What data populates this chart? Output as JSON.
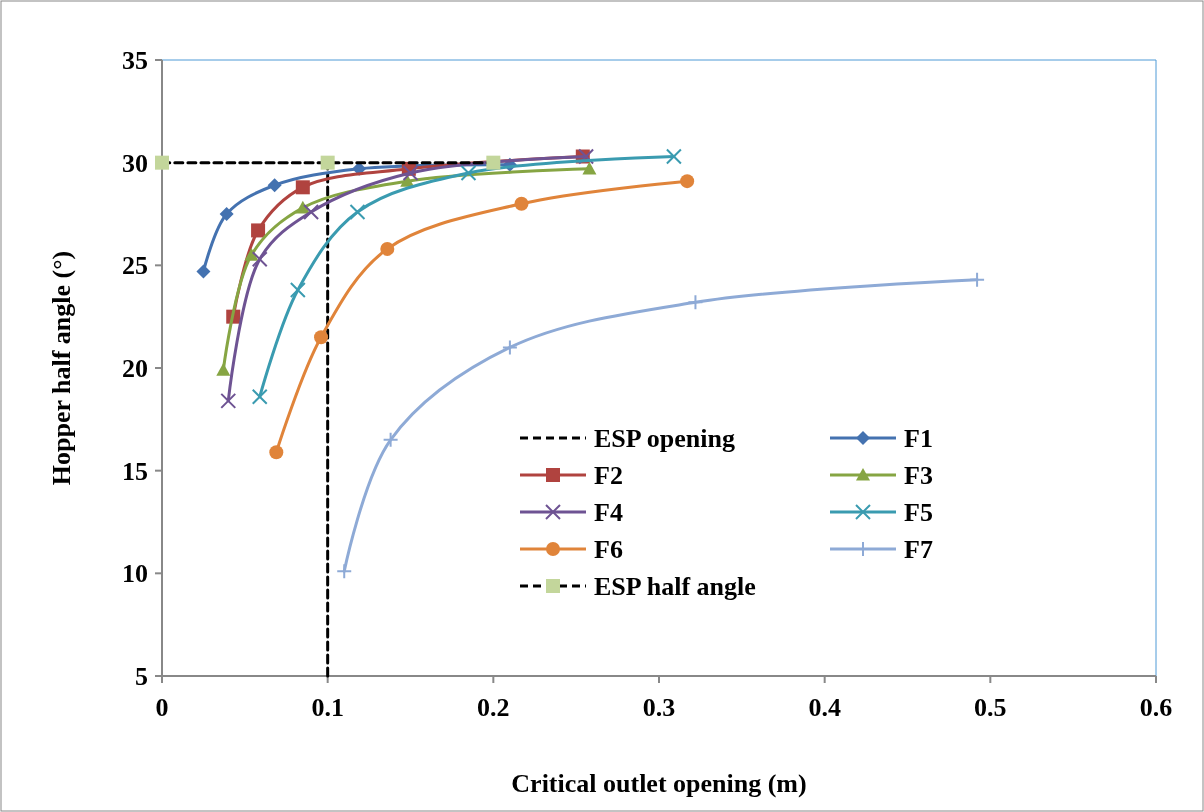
{
  "chart_data": {
    "type": "line",
    "xlabel": "Critical outlet opening (m)",
    "ylabel": "Hopper half angle (°)",
    "xlim": [
      0,
      0.6
    ],
    "xticks": [
      0,
      0.1,
      0.2,
      0.3,
      0.4,
      0.5,
      0.6
    ],
    "ylim": [
      5,
      35
    ],
    "yticks": [
      5,
      10,
      15,
      20,
      25,
      30,
      35
    ],
    "grid": false,
    "legend": "right",
    "series": [
      {
        "name": "ESP opening",
        "color": "#000000",
        "x": [
          0.1,
          0.1
        ],
        "values": [
          5,
          30
        ],
        "marker": "none",
        "line_style": "dashed"
      },
      {
        "name": "F1",
        "color": "#4472b0",
        "x": [
          0.025,
          0.039,
          0.068,
          0.119,
          0.21
        ],
        "values": [
          24.7,
          27.5,
          28.9,
          29.7,
          29.9
        ],
        "marker": "diamond",
        "line_style": "solid"
      },
      {
        "name": "F2",
        "color": "#b0433f",
        "x": [
          0.043,
          0.058,
          0.085,
          0.149,
          0.254
        ],
        "values": [
          22.5,
          26.7,
          28.8,
          29.7,
          30.3
        ],
        "marker": "square",
        "line_style": "solid"
      },
      {
        "name": "F3",
        "color": "#86a543",
        "x": [
          0.037,
          0.054,
          0.085,
          0.148,
          0.258
        ],
        "values": [
          19.9,
          25.5,
          27.8,
          29.1,
          29.7
        ],
        "marker": "triangle",
        "line_style": "solid"
      },
      {
        "name": "F4",
        "color": "#6e5393",
        "x": [
          0.04,
          0.059,
          0.09,
          0.15,
          0.256
        ],
        "values": [
          18.4,
          25.3,
          27.6,
          29.5,
          30.3
        ],
        "marker": "cross",
        "line_style": "solid"
      },
      {
        "name": "F5",
        "color": "#3a9bb0",
        "x": [
          0.059,
          0.082,
          0.118,
          0.185,
          0.309
        ],
        "values": [
          18.6,
          23.8,
          27.6,
          29.5,
          30.3
        ],
        "marker": "cross",
        "line_style": "solid"
      },
      {
        "name": "F6",
        "color": "#e0843a",
        "x": [
          0.069,
          0.096,
          0.136,
          0.217,
          0.317
        ],
        "values": [
          15.9,
          21.5,
          25.8,
          28.0,
          29.1
        ],
        "marker": "circle",
        "line_style": "solid"
      },
      {
        "name": "F7",
        "color": "#8eaad6",
        "x": [
          0.11,
          0.138,
          0.21,
          0.322,
          0.492
        ],
        "values": [
          10.1,
          16.5,
          21.0,
          23.2,
          24.3
        ],
        "marker": "plus",
        "line_style": "solid"
      },
      {
        "name": "ESP half angle",
        "color": "#000000",
        "colors": [
          "#c3d69b",
          "#c3d69b",
          "#c3d69b"
        ],
        "x": [
          0,
          0.1,
          0.2
        ],
        "values": [
          30,
          30,
          30
        ],
        "marker": "square",
        "line_style": "dashed"
      }
    ]
  }
}
